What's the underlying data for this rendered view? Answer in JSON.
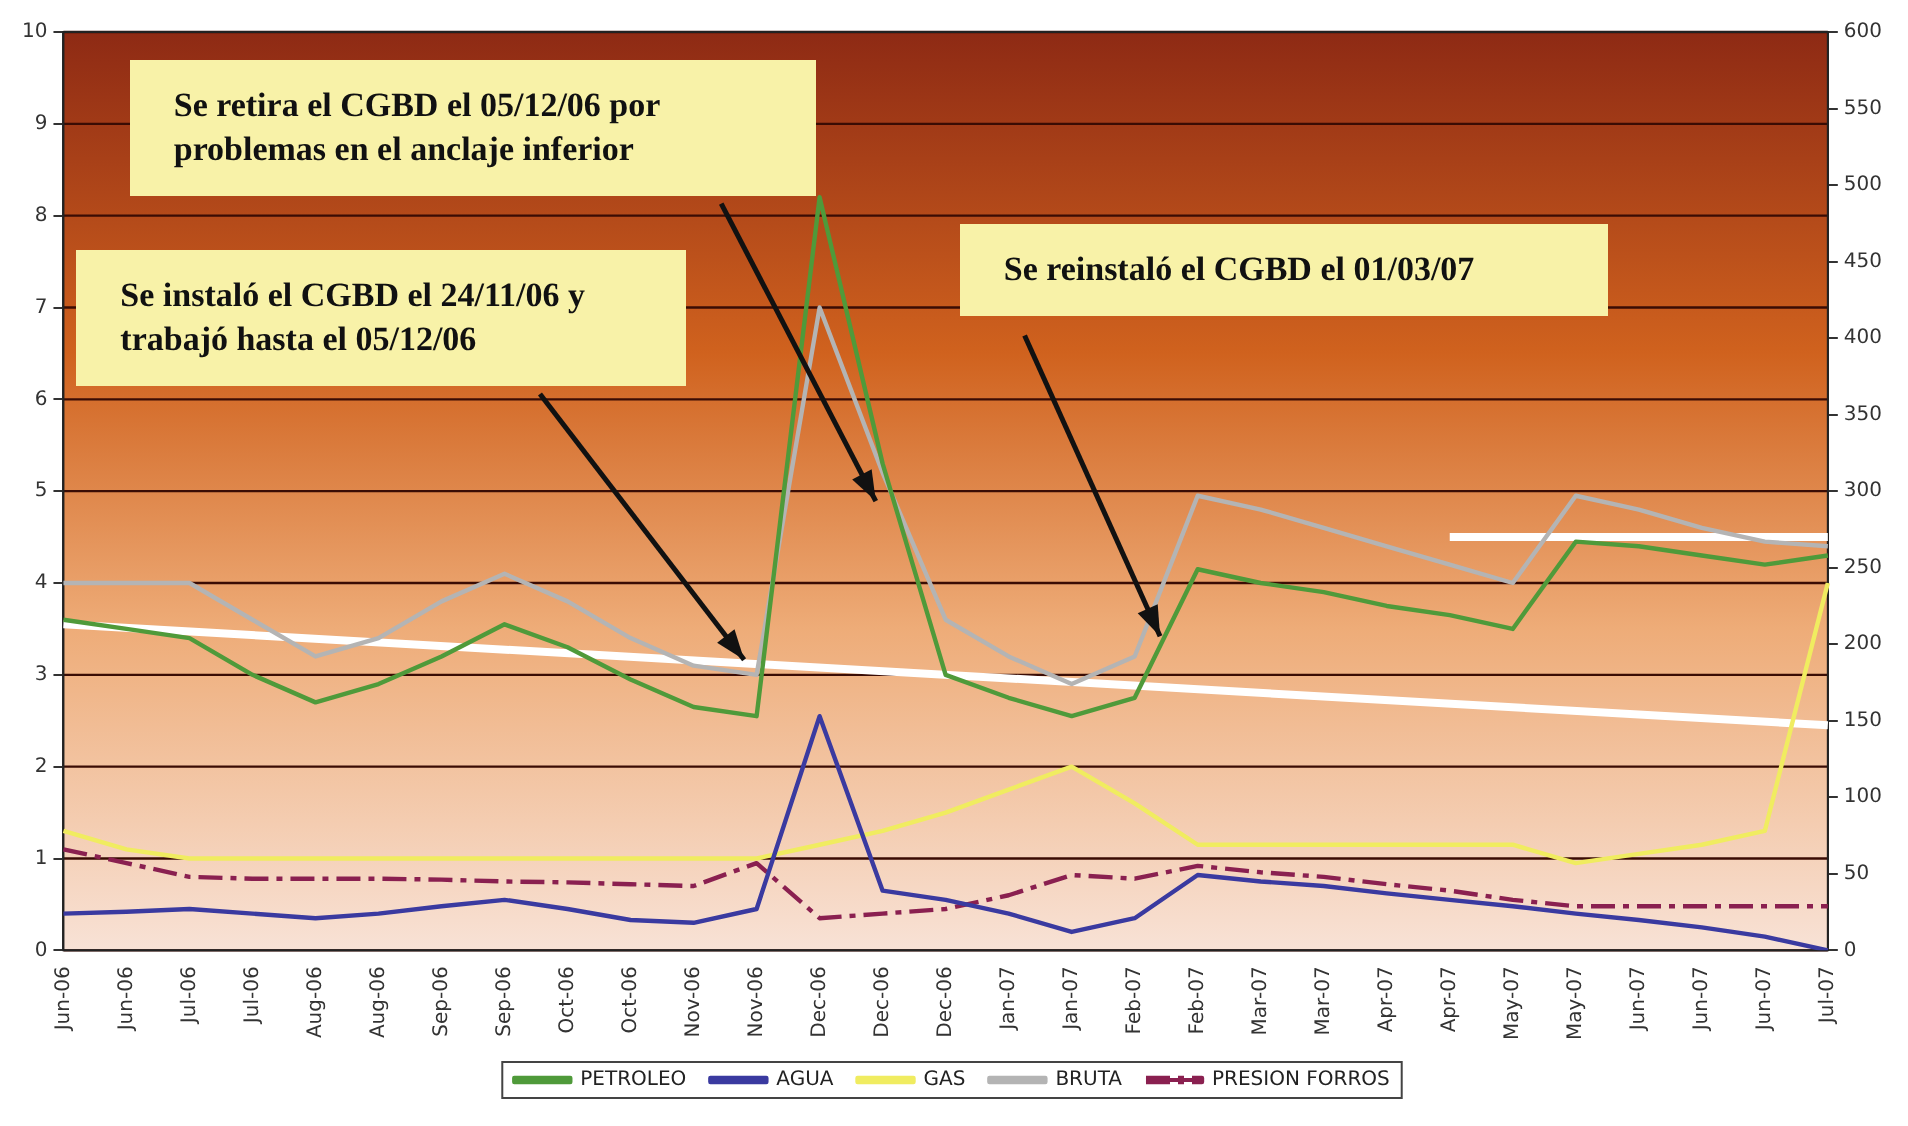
{
  "chart_data": {
    "type": "line",
    "categories": [
      "Jun-06",
      "Jun-06",
      "Jul-06",
      "Jul-06",
      "Aug-06",
      "Aug-06",
      "Sep-06",
      "Sep-06",
      "Oct-06",
      "Oct-06",
      "Nov-06",
      "Nov-06",
      "Dec-06",
      "Dec-06",
      "Dec-06",
      "Jan-07",
      "Jan-07",
      "Feb-07",
      "Feb-07",
      "Mar-07",
      "Mar-07",
      "Apr-07",
      "Apr-07",
      "May-07",
      "May-07",
      "Jun-07",
      "Jun-07",
      "Jun-07",
      "Jul-07"
    ],
    "series": [
      {
        "name": "PETROLEO",
        "color": "#4f9a3a",
        "values": [
          3.6,
          3.5,
          3.4,
          3.0,
          2.7,
          2.9,
          3.2,
          3.55,
          3.3,
          2.95,
          2.65,
          2.55,
          8.2,
          5.3,
          3.0,
          2.75,
          2.55,
          2.75,
          4.15,
          4.0,
          3.9,
          3.75,
          3.65,
          3.5,
          4.45,
          4.4,
          4.3,
          4.2,
          4.3
        ]
      },
      {
        "name": "AGUA",
        "color": "#3a3aa0",
        "values": [
          0.4,
          0.42,
          0.45,
          0.4,
          0.35,
          0.4,
          0.48,
          0.55,
          0.45,
          0.33,
          0.3,
          0.45,
          2.55,
          0.65,
          0.55,
          0.4,
          0.2,
          0.35,
          0.82,
          0.75,
          0.7,
          0.62,
          0.55,
          0.48,
          0.4,
          0.33,
          0.25,
          0.15,
          0.0
        ]
      },
      {
        "name": "GAS",
        "color": "#f0ec60",
        "values": [
          1.3,
          1.1,
          1.0,
          1.0,
          1.0,
          1.0,
          1.0,
          1.0,
          1.0,
          1.0,
          1.0,
          1.0,
          1.15,
          1.3,
          1.5,
          1.75,
          2.0,
          1.6,
          1.15,
          1.15,
          1.15,
          1.15,
          1.15,
          1.15,
          0.95,
          1.05,
          1.15,
          1.3,
          4.0
        ]
      },
      {
        "name": "BRUTA",
        "color": "#b4b4b4",
        "values": [
          4.0,
          4.0,
          4.0,
          3.6,
          3.2,
          3.4,
          3.8,
          4.1,
          3.8,
          3.4,
          3.1,
          3.0,
          7.0,
          5.2,
          3.6,
          3.2,
          2.9,
          3.2,
          4.95,
          4.8,
          4.6,
          4.4,
          4.2,
          4.0,
          4.95,
          4.8,
          4.6,
          4.45,
          4.4
        ]
      },
      {
        "name": "PRESION FORROS",
        "color": "#8a2050",
        "line_style": "dashed",
        "values": [
          1.1,
          0.95,
          0.8,
          0.78,
          0.78,
          0.78,
          0.77,
          0.75,
          0.74,
          0.72,
          0.7,
          0.95,
          0.35,
          0.4,
          0.45,
          0.6,
          0.82,
          0.78,
          0.92,
          0.85,
          0.8,
          0.72,
          0.65,
          0.55,
          0.48,
          0.48,
          0.48,
          0.48,
          0.48
        ]
      },
      {
        "color": "#ffffff",
        "values": [
          3.55,
          null,
          null,
          null,
          null,
          null,
          null,
          null,
          null,
          null,
          null,
          null,
          null,
          null,
          null,
          null,
          null,
          null,
          null,
          null,
          null,
          null,
          null,
          null,
          null,
          null,
          null,
          null,
          2.45
        ]
      },
      {
        "color": "#ffffff",
        "values": [
          null,
          null,
          null,
          null,
          null,
          null,
          null,
          null,
          null,
          null,
          null,
          null,
          null,
          null,
          null,
          null,
          null,
          null,
          null,
          null,
          null,
          null,
          4.5,
          null,
          null,
          null,
          null,
          null,
          4.5
        ]
      }
    ],
    "ylim": [
      0,
      10
    ],
    "yticks": [
      0,
      1,
      2,
      3,
      4,
      5,
      6,
      7,
      8,
      9,
      10
    ],
    "y2lim": [
      0,
      600
    ],
    "y2ticks": [
      0,
      50,
      100,
      150,
      200,
      250,
      300,
      350,
      400,
      450,
      500,
      550,
      600
    ],
    "grid": "y",
    "legend": "bottom",
    "marker": "none",
    "line_style": "solid",
    "annotations": [
      "Se retira el CGBD el 05/12/06 por problemas en el anclaje inferior",
      "Se instaló el CGBD el 24/11/06 y trabajó hasta el  05/12/06",
      "Se reinstaló el CGBD el 01/03/07"
    ]
  }
}
